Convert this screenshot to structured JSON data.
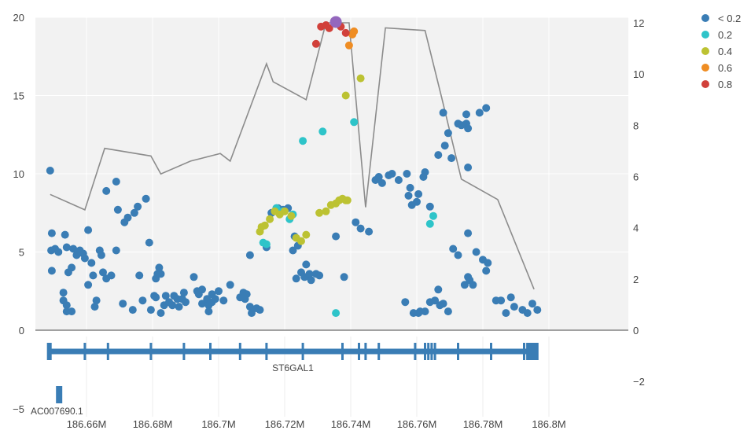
{
  "chart_data": {
    "type": "scatter",
    "x_ticks": [
      {
        "value": 186.66,
        "label": "186.66M"
      },
      {
        "value": 186.68,
        "label": "186.68M"
      },
      {
        "value": 186.7,
        "label": "186.7M"
      },
      {
        "value": 186.72,
        "label": "186.72M"
      },
      {
        "value": 186.74,
        "label": "186.74M"
      },
      {
        "value": 186.76,
        "label": "186.76M"
      },
      {
        "value": 186.78,
        "label": "186.78M"
      },
      {
        "value": 186.8,
        "label": "186.8M"
      }
    ],
    "y_left": {
      "range": [
        0,
        20
      ],
      "ticks": [
        {
          "value": 0,
          "label": "0"
        },
        {
          "value": 5,
          "label": "5"
        },
        {
          "value": 10,
          "label": "10"
        },
        {
          "value": 15,
          "label": "15"
        },
        {
          "value": 20,
          "label": "20"
        }
      ]
    },
    "y_left_gene_tick": {
      "value": -5,
      "label": "−5"
    },
    "y_right": {
      "range": [
        0,
        12
      ],
      "ticks": [
        {
          "value": 0,
          "label": "0"
        },
        {
          "value": 2,
          "label": "2"
        },
        {
          "value": 4,
          "label": "4"
        },
        {
          "value": 6,
          "label": "6"
        },
        {
          "value": 8,
          "label": "8"
        },
        {
          "value": 10,
          "label": "10"
        },
        {
          "value": 12,
          "label": "12"
        }
      ]
    },
    "y_right_gene_tick": {
      "value": -2,
      "label": "−2"
    },
    "grid": true,
    "legend": {
      "position": "top-right",
      "entries": [
        {
          "label": "< 0.2",
          "color": "#3a7db5"
        },
        {
          "label": "0.2",
          "color": "#2ec4c9"
        },
        {
          "label": "0.4",
          "color": "#bcc232"
        },
        {
          "label": "0.6",
          "color": "#ef8d23"
        },
        {
          "label": "0.8",
          "color": "#d1403a"
        }
      ]
    },
    "lead_snp": {
      "x": 186.7355,
      "y": 19.7,
      "color": "#9467bd"
    },
    "series": [
      {
        "name": "< 0.2",
        "color": "#3a7db5",
        "points": [
          [
            186.649,
            10.2
          ],
          [
            186.6495,
            6.2
          ],
          [
            186.6493,
            5.1
          ],
          [
            186.6505,
            5.2
          ],
          [
            186.6515,
            5.0
          ],
          [
            186.6495,
            3.8
          ],
          [
            186.653,
            2.4
          ],
          [
            186.653,
            1.9
          ],
          [
            186.654,
            1.6
          ],
          [
            186.654,
            1.2
          ],
          [
            186.6555,
            1.2
          ],
          [
            186.6535,
            6.1
          ],
          [
            186.654,
            5.3
          ],
          [
            186.6545,
            3.7
          ],
          [
            186.6555,
            4.0
          ],
          [
            186.656,
            5.2
          ],
          [
            186.657,
            4.8
          ],
          [
            186.658,
            5.1
          ],
          [
            186.659,
            4.9
          ],
          [
            186.6595,
            4.6
          ],
          [
            186.6605,
            6.4
          ],
          [
            186.6605,
            2.9
          ],
          [
            186.6615,
            4.3
          ],
          [
            186.662,
            3.5
          ],
          [
            186.6625,
            1.5
          ],
          [
            186.663,
            1.9
          ],
          [
            186.664,
            5.1
          ],
          [
            186.6645,
            4.8
          ],
          [
            186.665,
            3.7
          ],
          [
            186.666,
            8.9
          ],
          [
            186.666,
            3.3
          ],
          [
            186.6675,
            3.5
          ],
          [
            186.669,
            9.5
          ],
          [
            186.6695,
            7.7
          ],
          [
            186.669,
            5.1
          ],
          [
            186.6715,
            6.9
          ],
          [
            186.671,
            1.7
          ],
          [
            186.6725,
            7.2
          ],
          [
            186.674,
            1.3
          ],
          [
            186.6745,
            7.5
          ],
          [
            186.6755,
            7.9
          ],
          [
            186.676,
            3.5
          ],
          [
            186.677,
            1.9
          ],
          [
            186.678,
            8.4
          ],
          [
            186.679,
            5.6
          ],
          [
            186.6795,
            1.3
          ],
          [
            186.6805,
            2.2
          ],
          [
            186.681,
            3.3
          ],
          [
            186.681,
            2.1
          ],
          [
            186.6815,
            3.6
          ],
          [
            186.682,
            4.0
          ],
          [
            186.6825,
            3.6
          ],
          [
            186.6835,
            1.6
          ],
          [
            186.6825,
            1.1
          ],
          [
            186.684,
            2.2
          ],
          [
            186.685,
            1.8
          ],
          [
            186.686,
            1.6
          ],
          [
            186.6865,
            2.2
          ],
          [
            186.6875,
            2.0
          ],
          [
            186.688,
            1.5
          ],
          [
            186.689,
            2.0
          ],
          [
            186.6895,
            2.4
          ],
          [
            186.69,
            1.8
          ],
          [
            186.6925,
            3.4
          ],
          [
            186.6935,
            2.5
          ],
          [
            186.694,
            2.3
          ],
          [
            186.695,
            2.6
          ],
          [
            186.695,
            1.7
          ],
          [
            186.6965,
            2.0
          ],
          [
            186.697,
            1.6
          ],
          [
            186.697,
            1.2
          ],
          [
            186.698,
            2.3
          ],
          [
            186.698,
            1.8
          ],
          [
            186.699,
            2.0
          ],
          [
            186.7,
            2.5
          ],
          [
            186.7015,
            1.9
          ],
          [
            186.7035,
            2.9
          ],
          [
            186.7065,
            2.1
          ],
          [
            186.7075,
            2.4
          ],
          [
            186.708,
            2.0
          ],
          [
            186.7085,
            2.3
          ],
          [
            186.7095,
            1.5
          ],
          [
            186.71,
            1.1
          ],
          [
            186.7115,
            1.4
          ],
          [
            186.7125,
            1.3
          ],
          [
            186.7095,
            4.8
          ],
          [
            186.7145,
            5.3
          ],
          [
            186.716,
            7.5
          ],
          [
            186.7175,
            7.8
          ],
          [
            186.718,
            7.8
          ],
          [
            186.7195,
            7.7
          ],
          [
            186.721,
            7.8
          ],
          [
            186.7225,
            5.1
          ],
          [
            186.723,
            6.0
          ],
          [
            186.724,
            5.4
          ],
          [
            186.7235,
            3.3
          ],
          [
            186.725,
            3.7
          ],
          [
            186.726,
            3.4
          ],
          [
            186.7265,
            4.2
          ],
          [
            186.7275,
            3.6
          ],
          [
            186.728,
            3.2
          ],
          [
            186.7295,
            3.6
          ],
          [
            186.7305,
            3.5
          ],
          [
            186.7355,
            6.0
          ],
          [
            186.738,
            3.4
          ],
          [
            186.7415,
            6.9
          ],
          [
            186.743,
            6.5
          ],
          [
            186.7455,
            6.3
          ],
          [
            186.7475,
            9.6
          ],
          [
            186.7485,
            9.8
          ],
          [
            186.7495,
            9.4
          ],
          [
            186.7515,
            9.9
          ],
          [
            186.7525,
            10.0
          ],
          [
            186.7545,
            9.6
          ],
          [
            186.757,
            10.0
          ],
          [
            186.758,
            9.1
          ],
          [
            186.7575,
            8.6
          ],
          [
            186.7585,
            8.0
          ],
          [
            186.76,
            8.2
          ],
          [
            186.7605,
            8.7
          ],
          [
            186.762,
            9.8
          ],
          [
            186.7625,
            10.1
          ],
          [
            186.764,
            7.9
          ],
          [
            186.7665,
            11.2
          ],
          [
            186.768,
            13.9
          ],
          [
            186.7695,
            12.6
          ],
          [
            186.7685,
            11.8
          ],
          [
            186.7705,
            11.0
          ],
          [
            186.7725,
            13.2
          ],
          [
            186.7735,
            13.1
          ],
          [
            186.775,
            13.2
          ],
          [
            186.7755,
            12.9
          ],
          [
            186.775,
            13.8
          ],
          [
            186.779,
            13.9
          ],
          [
            186.781,
            14.2
          ],
          [
            186.7755,
            10.4
          ],
          [
            186.771,
            5.2
          ],
          [
            186.7755,
            6.2
          ],
          [
            186.7725,
            4.8
          ],
          [
            186.7745,
            2.9
          ],
          [
            186.776,
            3.2
          ],
          [
            186.777,
            2.9
          ],
          [
            186.778,
            5.0
          ],
          [
            186.78,
            4.5
          ],
          [
            186.781,
            3.8
          ],
          [
            186.7815,
            4.3
          ],
          [
            186.7565,
            1.8
          ],
          [
            186.759,
            1.1
          ],
          [
            186.7605,
            1.1
          ],
          [
            186.761,
            1.2
          ],
          [
            186.7625,
            1.2
          ],
          [
            186.764,
            1.8
          ],
          [
            186.7655,
            1.9
          ],
          [
            186.767,
            1.6
          ],
          [
            186.768,
            1.7
          ],
          [
            186.7695,
            1.2
          ],
          [
            186.7665,
            2.6
          ],
          [
            186.7755,
            3.4
          ],
          [
            186.784,
            1.9
          ],
          [
            186.7855,
            1.9
          ],
          [
            186.787,
            1.1
          ],
          [
            186.7885,
            2.1
          ],
          [
            186.7895,
            1.5
          ],
          [
            186.792,
            1.3
          ],
          [
            186.7935,
            1.1
          ],
          [
            186.795,
            1.7
          ],
          [
            186.7965,
            1.3
          ]
        ]
      },
      {
        "name": "0.2",
        "color": "#2ec4c9",
        "points": [
          [
            186.7135,
            5.6
          ],
          [
            186.7145,
            5.5
          ],
          [
            186.7175,
            7.8
          ],
          [
            186.7195,
            7.6
          ],
          [
            186.7215,
            7.1
          ],
          [
            186.7225,
            7.4
          ],
          [
            186.7255,
            12.1
          ],
          [
            186.7315,
            12.7
          ],
          [
            186.7355,
            1.1
          ],
          [
            186.741,
            13.3
          ],
          [
            186.764,
            6.8
          ],
          [
            186.765,
            7.3
          ]
        ]
      },
      {
        "name": "0.4",
        "color": "#bcc232",
        "points": [
          [
            186.7125,
            6.3
          ],
          [
            186.713,
            6.6
          ],
          [
            186.714,
            6.7
          ],
          [
            186.7155,
            7.1
          ],
          [
            186.717,
            7.6
          ],
          [
            186.7185,
            7.4
          ],
          [
            186.72,
            7.6
          ],
          [
            186.722,
            7.3
          ],
          [
            186.7235,
            5.9
          ],
          [
            186.725,
            5.7
          ],
          [
            186.7265,
            6.1
          ],
          [
            186.7305,
            7.5
          ],
          [
            186.7325,
            7.6
          ],
          [
            186.734,
            8.0
          ],
          [
            186.7355,
            8.1
          ],
          [
            186.7365,
            8.3
          ],
          [
            186.7375,
            8.4
          ],
          [
            186.7385,
            8.3
          ],
          [
            186.739,
            8.3
          ],
          [
            186.7385,
            15.0
          ],
          [
            186.743,
            16.1
          ]
        ]
      },
      {
        "name": "0.6",
        "color": "#ef8d23",
        "points": [
          [
            186.7395,
            18.2
          ],
          [
            186.7405,
            18.9
          ],
          [
            186.741,
            19.1
          ]
        ]
      },
      {
        "name": "0.8",
        "color": "#d1403a",
        "points": [
          [
            186.7295,
            18.3
          ],
          [
            186.731,
            19.4
          ],
          [
            186.7325,
            19.5
          ],
          [
            186.7335,
            19.3
          ],
          [
            186.737,
            19.4
          ],
          [
            186.7385,
            19.0
          ]
        ]
      }
    ],
    "line_series": {
      "axis": "right",
      "color": "#8c8c8c",
      "points": [
        [
          186.649,
          5.3
        ],
        [
          186.6595,
          4.7
        ],
        [
          186.6655,
          7.1
        ],
        [
          186.6795,
          6.8
        ],
        [
          186.6825,
          6.1
        ],
        [
          186.6915,
          6.6
        ],
        [
          186.7005,
          6.9
        ],
        [
          186.7035,
          6.6
        ],
        [
          186.7145,
          10.4
        ],
        [
          186.7165,
          9.7
        ],
        [
          186.7265,
          9.0
        ],
        [
          186.7325,
          12.0
        ],
        [
          186.7395,
          12.0
        ],
        [
          186.7445,
          4.8
        ],
        [
          186.7505,
          11.8
        ],
        [
          186.7625,
          11.7
        ],
        [
          186.7675,
          9.1
        ],
        [
          186.7735,
          5.9
        ],
        [
          186.7845,
          5.1
        ],
        [
          186.7955,
          1.6
        ]
      ]
    },
    "genes": [
      {
        "name": "ST6GAL1",
        "start": 186.6485,
        "end": 186.7965,
        "exons": [
          186.6485,
          186.649,
          186.6595,
          186.6665,
          186.6795,
          186.6895,
          186.6975,
          186.7065,
          186.7145,
          186.7255,
          186.7375,
          186.7425,
          186.7445,
          186.7485,
          186.7595,
          186.7625,
          186.7635,
          186.7645,
          186.7655,
          186.7725,
          186.7825,
          186.7925,
          186.7935,
          186.7945,
          186.7955,
          186.7965
        ]
      },
      {
        "name": "AC007690.1",
        "start": 186.651,
        "end": 186.6525,
        "exons": [
          186.651,
          186.6525
        ]
      }
    ]
  }
}
